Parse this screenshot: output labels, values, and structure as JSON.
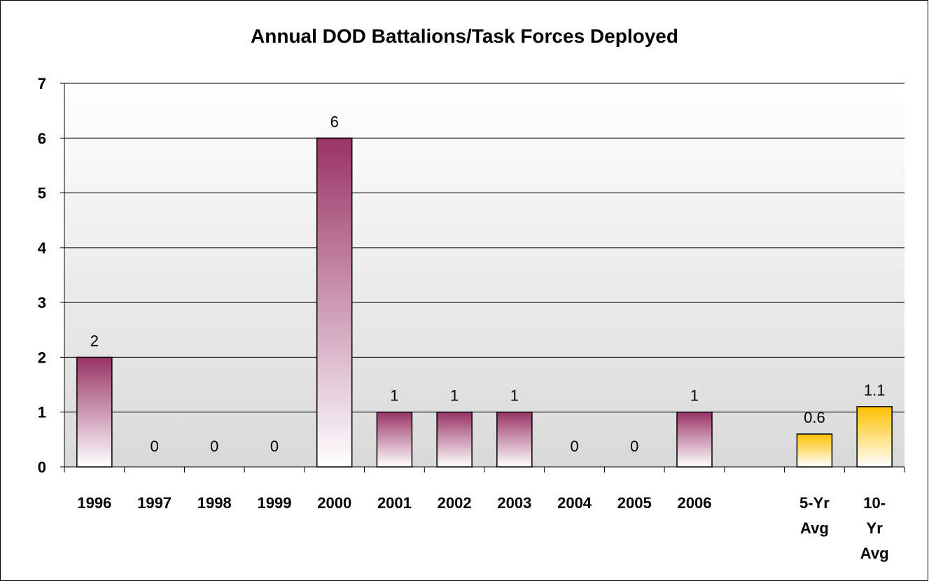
{
  "chart_data": {
    "type": "bar",
    "title": "Annual DOD Battalions/Task Forces Deployed",
    "xlabel": "",
    "ylabel": "",
    "ylim": [
      0,
      7
    ],
    "yticks": [
      "0",
      "1",
      "2",
      "3",
      "4",
      "5",
      "6",
      "7"
    ],
    "grid": true,
    "categories": [
      "1996",
      "1997",
      "1998",
      "1999",
      "2000",
      "2001",
      "2002",
      "2003",
      "2004",
      "2005",
      "2006",
      "",
      "5-Yr Avg",
      "10-Yr Avg"
    ],
    "category_label_lines": [
      [
        "1996"
      ],
      [
        "1997"
      ],
      [
        "1998"
      ],
      [
        "1999"
      ],
      [
        "2000"
      ],
      [
        "2001"
      ],
      [
        "2002"
      ],
      [
        "2003"
      ],
      [
        "2004"
      ],
      [
        "2005"
      ],
      [
        "2006"
      ],
      [
        ""
      ],
      [
        "5-Yr",
        "Avg"
      ],
      [
        "10-",
        "Yr",
        "Avg"
      ]
    ],
    "values": [
      2,
      0,
      0,
      0,
      6,
      1,
      1,
      1,
      0,
      0,
      1,
      null,
      0.6,
      1.1
    ],
    "data_labels": [
      "2",
      "0",
      "0",
      "0",
      "6",
      "1",
      "1",
      "1",
      "0",
      "0",
      "1",
      "",
      "0.6",
      "1.1"
    ],
    "bar_kinds": [
      "annual",
      "annual",
      "annual",
      "annual",
      "annual",
      "annual",
      "annual",
      "annual",
      "annual",
      "annual",
      "annual",
      "none",
      "average",
      "average"
    ],
    "colors": {
      "annual_top": "#993366",
      "annual_bottom": "#ffffff",
      "average_top": "#ffc000",
      "average_bottom": "#ffffff",
      "plot_bg_top": "#ffffff",
      "plot_bg_bottom": "#d9d9d9",
      "gridline": "#000000"
    }
  }
}
